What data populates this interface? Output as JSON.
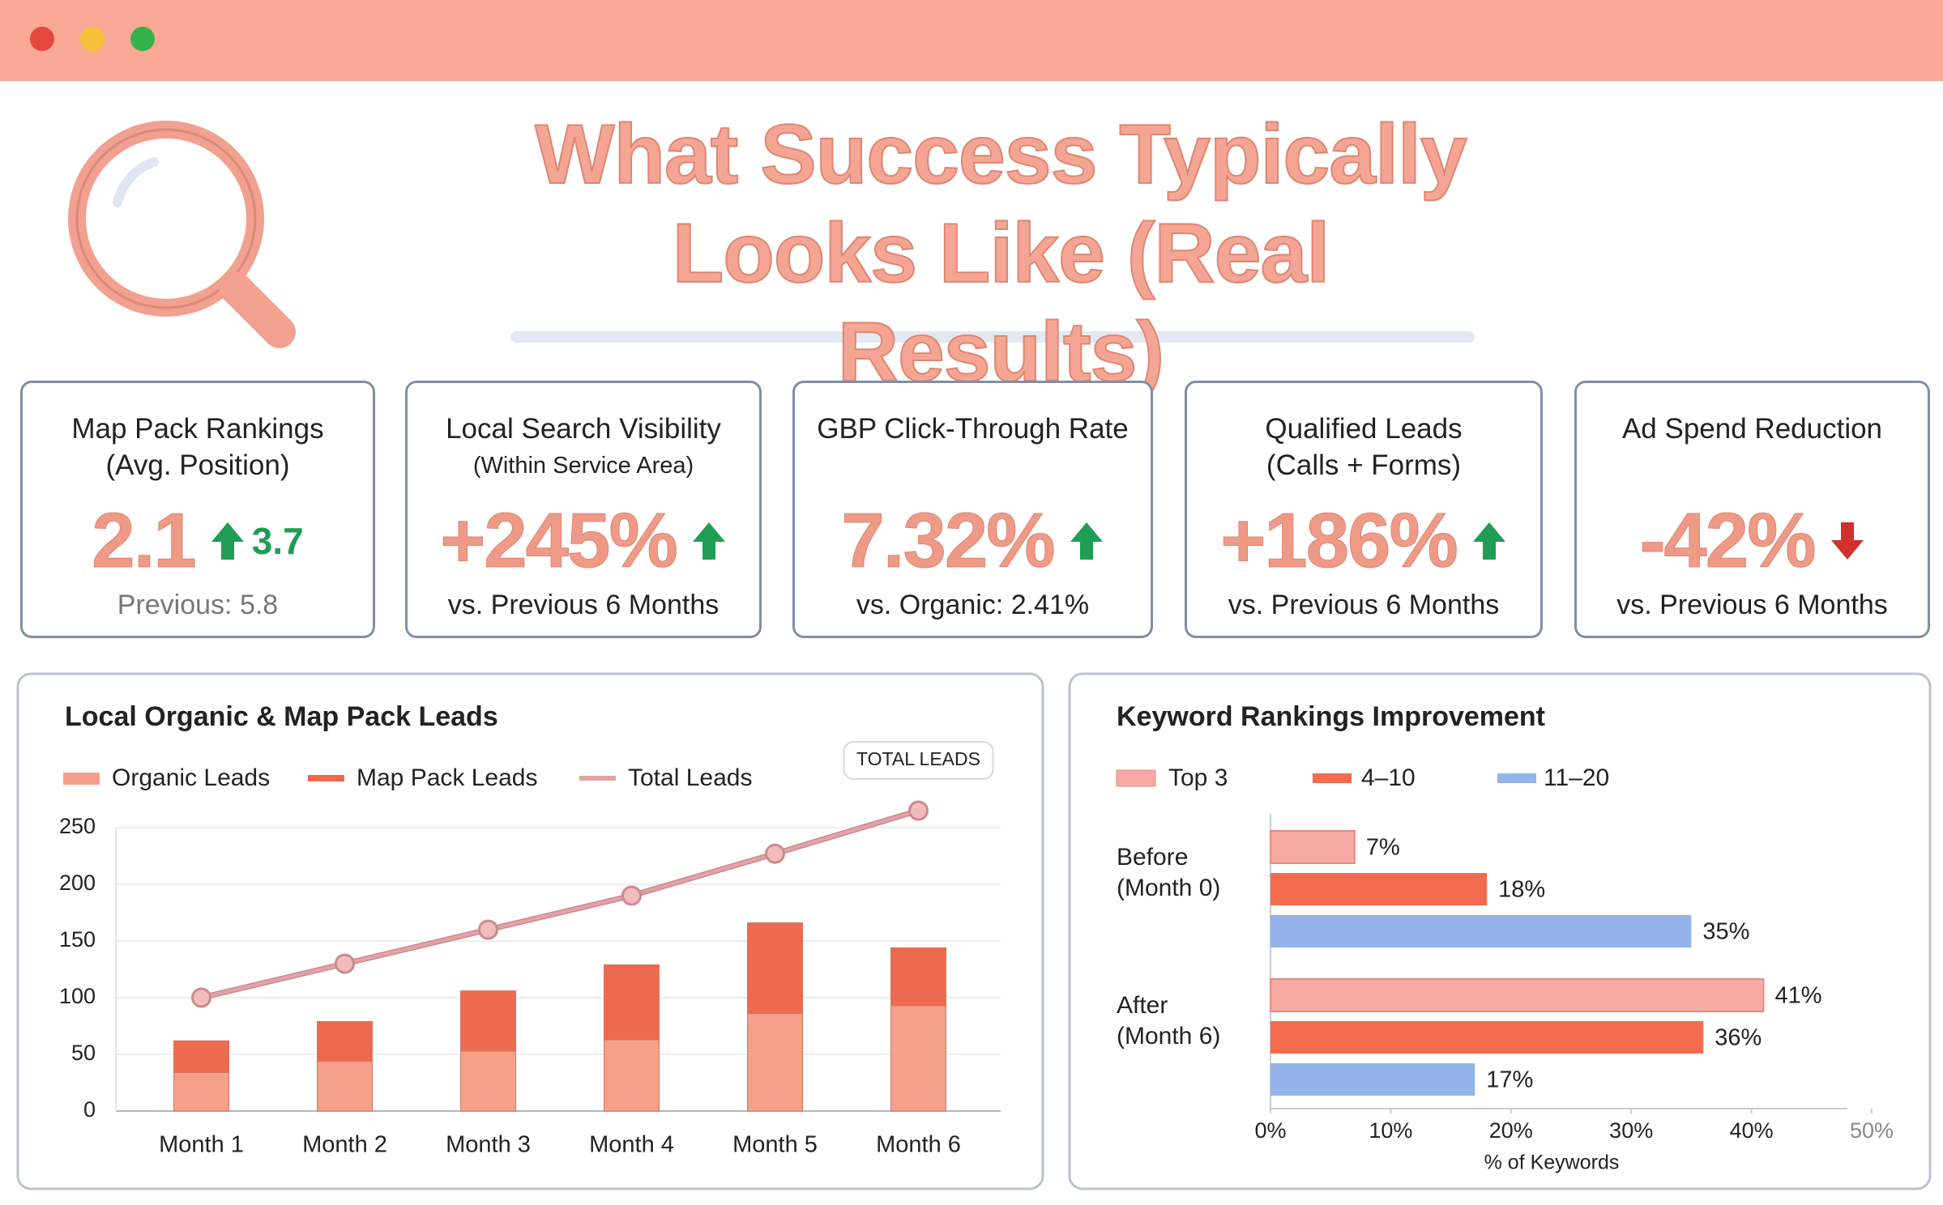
{
  "header": {
    "title": "What Success Typically Looks Like (Real Results)"
  },
  "kpis": [
    {
      "title": "Map Pack Rankings",
      "subtitle": "(Avg. Position)",
      "value": "2.1",
      "change": "3.7",
      "trend": "up",
      "trend_color": "#1f9d55",
      "note": "Previous: 5.8"
    },
    {
      "title": "Local Search Visibility",
      "subtitle": "(Within Service Area)",
      "value": "+245%",
      "trend": "up",
      "trend_color": "#1f9d55",
      "note": "vs. Previous 6 Months"
    },
    {
      "title": "GBP Click-Through Rate",
      "value": "7.32%",
      "trend": "up",
      "trend_color": "#1f9d55",
      "note": "vs. Organic: 2.41%"
    },
    {
      "title": "Qualified Leads",
      "subtitle": "(Calls + Forms)",
      "value": "+186%",
      "trend": "up",
      "trend_color": "#1f9d55",
      "note": "vs. Previous 6 Months"
    },
    {
      "title": "Ad Spend Reduction",
      "value": "-42%",
      "trend": "down",
      "trend_color": "#d0312d",
      "note": "vs. Previous 6 Months"
    }
  ],
  "chart_data": [
    {
      "type": "combo",
      "title": "Local Organic & Map Pack Leads",
      "categories": [
        "Month 1",
        "Month 2",
        "Month 3",
        "Month 4",
        "Month 5",
        "Month 6"
      ],
      "series": [
        {
          "name": "Organic Leads",
          "type": "bar",
          "color": "#f4a08a",
          "values": [
            34,
            44,
            53,
            63,
            86,
            93
          ]
        },
        {
          "name": "Map Pack Leads",
          "type": "bar",
          "color": "#ee6a4e",
          "values": [
            28,
            35,
            53,
            66,
            80,
            51
          ]
        },
        {
          "name": "Total Leads",
          "type": "line",
          "color": "#e3a3a5",
          "values": [
            100,
            130,
            160,
            190,
            227,
            265
          ]
        }
      ],
      "annotation": "TOTAL LEADS",
      "ylim": [
        0,
        250
      ],
      "yticks": [
        0,
        50,
        100,
        150,
        200,
        250
      ],
      "grid": true
    },
    {
      "type": "hbar",
      "title": "Keyword Rankings Improvement",
      "categories": [
        "Before (Month 0)",
        "After (Month 6)"
      ],
      "series": [
        {
          "name": "Top 3",
          "color": "#f7aaa2",
          "values": [
            7,
            41
          ],
          "value_labels": [
            "7%",
            "41%"
          ]
        },
        {
          "name": "4–10",
          "color": "#f26b4f",
          "values": [
            18,
            36
          ],
          "value_labels": [
            "18%",
            "36%"
          ]
        },
        {
          "name": "11–20",
          "color": "#93b3ea",
          "values": [
            35,
            17
          ],
          "value_labels": [
            "35%",
            "17%"
          ]
        }
      ],
      "xlim": [
        0,
        50
      ],
      "xticks": [
        {
          "value": 0,
          "label": "0%"
        },
        {
          "value": 10,
          "label": "10%"
        },
        {
          "value": 20,
          "label": "20%"
        },
        {
          "value": 30,
          "label": "30%"
        },
        {
          "value": 40,
          "label": "40%"
        },
        {
          "value": 50,
          "label": "50%"
        }
      ],
      "xlabel": "% of Keywords"
    }
  ]
}
